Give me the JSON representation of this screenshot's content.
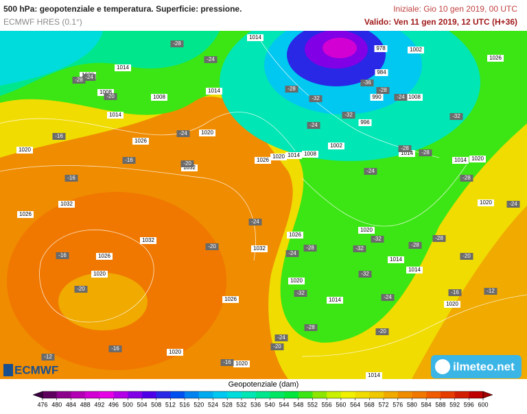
{
  "header": {
    "title": "500 hPa: geopotenziale e temperatura. Superficie: pressione.",
    "model": "ECMWF HRES (0.1°)",
    "init": "Iniziale: Gio 10 gen 2019, 00 UTC",
    "valid": "Valido: Ven 11 gen 2019, 12 UTC (H+36)"
  },
  "map": {
    "pressure_labels": [
      "1014",
      "978",
      "1002",
      "1026",
      "1014",
      "1020",
      "1008",
      "1008",
      "1014",
      "984",
      "990",
      "1008",
      "1014",
      "996",
      "1020",
      "1026",
      "1020",
      "1002",
      "1008",
      "1014",
      "1020",
      "1026",
      "1032",
      "1014",
      "1014",
      "1020",
      "1032",
      "1026",
      "1020",
      "1026",
      "1020",
      "1032",
      "1032",
      "1026",
      "1014",
      "1014",
      "1020",
      "1020",
      "1014",
      "1026",
      "1020",
      "1020",
      "1020",
      "1014"
    ],
    "temperature_labels": [
      "-28",
      "-24",
      "-28",
      "-24",
      "-20",
      "-28",
      "-32",
      "-36",
      "-28",
      "-24",
      "-32",
      "-24",
      "-32",
      "-16",
      "-24",
      "-16",
      "-20",
      "-16",
      "-28",
      "-28",
      "-24",
      "-28",
      "-24",
      "-24",
      "-32",
      "-28",
      "-28",
      "-20",
      "-16",
      "-24",
      "-28",
      "-32",
      "-20",
      "-20",
      "-32",
      "-24",
      "-16",
      "-12",
      "-32",
      "-28",
      "-20",
      "-24",
      "-20",
      "-16",
      "-12",
      "-16"
    ]
  },
  "colorbar": {
    "title": "Geopotenziale (dam)",
    "ticks": [
      476,
      480,
      484,
      488,
      492,
      496,
      500,
      504,
      508,
      512,
      516,
      520,
      524,
      528,
      532,
      536,
      540,
      544,
      548,
      552,
      556,
      560,
      564,
      568,
      572,
      576,
      580,
      584,
      588,
      592,
      596,
      600
    ],
    "colors": [
      "#3a0040",
      "#5e005e",
      "#8c008c",
      "#b400b4",
      "#d200d2",
      "#e600e6",
      "#b400e6",
      "#8200e6",
      "#5000e6",
      "#2828e6",
      "#0050f0",
      "#0082f0",
      "#00aaf0",
      "#00c8f0",
      "#00dcdc",
      "#00e6b4",
      "#00e68c",
      "#00e664",
      "#00e63c",
      "#3ce614",
      "#8ce600",
      "#c8f000",
      "#f0f000",
      "#f0dc00",
      "#f0c800",
      "#f0aa00",
      "#f08c00",
      "#f07800",
      "#f05a00",
      "#e63c00",
      "#d21e00",
      "#be0000",
      "#a00000"
    ]
  },
  "logos": {
    "left": "ECMWF",
    "right": "ilmeteo.net"
  }
}
